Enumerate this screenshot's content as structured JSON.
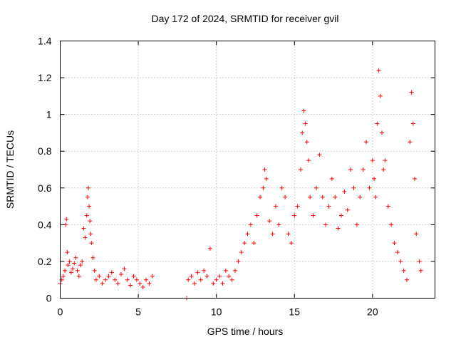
{
  "chart_data": {
    "type": "scatter",
    "title": "Day 172 of 2024, SRMTID for receiver gvil",
    "xlabel": "GPS time / hours",
    "ylabel": "SRMTID / TECUs",
    "xlim": [
      0,
      24
    ],
    "ylim": [
      0,
      1.4
    ],
    "xticks": [
      0,
      5,
      10,
      15,
      20
    ],
    "xtick_labels": [
      "0",
      "5",
      "10",
      "15",
      "20"
    ],
    "yticks": [
      0,
      0.2,
      0.4,
      0.6,
      0.8,
      1.0,
      1.2,
      1.4
    ],
    "ytick_labels": [
      "0",
      "0.2",
      "0.4",
      "0.6",
      "0.8",
      "1",
      "1.2",
      "1.4"
    ],
    "grid": true,
    "marker": "+",
    "series_color": "#ff0000",
    "series": [
      {
        "name": "SRMTID",
        "points": [
          [
            0.0,
            0.08
          ],
          [
            0.1,
            0.1
          ],
          [
            0.2,
            0.12
          ],
          [
            0.3,
            0.15
          ],
          [
            0.35,
            0.4
          ],
          [
            0.4,
            0.43
          ],
          [
            0.45,
            0.25
          ],
          [
            0.5,
            0.18
          ],
          [
            0.6,
            0.2
          ],
          [
            0.7,
            0.14
          ],
          [
            0.8,
            0.16
          ],
          [
            0.9,
            0.19
          ],
          [
            1.0,
            0.22
          ],
          [
            1.1,
            0.15
          ],
          [
            1.2,
            0.12
          ],
          [
            1.3,
            0.18
          ],
          [
            1.4,
            0.2
          ],
          [
            1.5,
            0.38
          ],
          [
            1.6,
            0.33
          ],
          [
            1.7,
            0.45
          ],
          [
            1.75,
            0.55
          ],
          [
            1.8,
            0.6
          ],
          [
            1.85,
            0.5
          ],
          [
            1.9,
            0.42
          ],
          [
            1.95,
            0.35
          ],
          [
            2.0,
            0.3
          ],
          [
            2.1,
            0.22
          ],
          [
            2.2,
            0.15
          ],
          [
            2.3,
            0.1
          ],
          [
            2.5,
            0.12
          ],
          [
            2.7,
            0.08
          ],
          [
            2.9,
            0.1
          ],
          [
            3.1,
            0.12
          ],
          [
            3.3,
            0.14
          ],
          [
            3.5,
            0.1
          ],
          [
            3.7,
            0.08
          ],
          [
            3.9,
            0.13
          ],
          [
            4.1,
            0.16
          ],
          [
            4.3,
            0.1
          ],
          [
            4.5,
            0.07
          ],
          [
            4.7,
            0.12
          ],
          [
            4.9,
            0.1
          ],
          [
            5.1,
            0.08
          ],
          [
            5.3,
            0.06
          ],
          [
            5.5,
            0.1
          ],
          [
            5.7,
            0.08
          ],
          [
            5.9,
            0.12
          ],
          [
            8.1,
            0.0
          ],
          [
            8.2,
            0.1
          ],
          [
            8.4,
            0.12
          ],
          [
            8.6,
            0.08
          ],
          [
            8.8,
            0.14
          ],
          [
            9.0,
            0.1
          ],
          [
            9.2,
            0.15
          ],
          [
            9.4,
            0.12
          ],
          [
            9.6,
            0.27
          ],
          [
            9.8,
            0.08
          ],
          [
            10.0,
            0.1
          ],
          [
            10.2,
            0.12
          ],
          [
            10.4,
            0.08
          ],
          [
            10.6,
            0.15
          ],
          [
            10.8,
            0.12
          ],
          [
            11.0,
            0.1
          ],
          [
            11.2,
            0.15
          ],
          [
            11.4,
            0.2
          ],
          [
            11.6,
            0.25
          ],
          [
            11.8,
            0.3
          ],
          [
            12.0,
            0.35
          ],
          [
            12.2,
            0.4
          ],
          [
            12.4,
            0.3
          ],
          [
            12.6,
            0.45
          ],
          [
            12.8,
            0.55
          ],
          [
            13.0,
            0.6
          ],
          [
            13.1,
            0.7
          ],
          [
            13.2,
            0.65
          ],
          [
            13.4,
            0.42
          ],
          [
            13.6,
            0.35
          ],
          [
            13.8,
            0.5
          ],
          [
            14.0,
            0.4
          ],
          [
            14.2,
            0.6
          ],
          [
            14.4,
            0.55
          ],
          [
            14.6,
            0.35
          ],
          [
            14.8,
            0.3
          ],
          [
            15.0,
            0.45
          ],
          [
            15.2,
            0.5
          ],
          [
            15.4,
            0.7
          ],
          [
            15.5,
            0.9
          ],
          [
            15.6,
            1.02
          ],
          [
            15.7,
            0.95
          ],
          [
            15.8,
            0.85
          ],
          [
            15.9,
            0.75
          ],
          [
            16.0,
            0.55
          ],
          [
            16.2,
            0.45
          ],
          [
            16.4,
            0.6
          ],
          [
            16.6,
            0.78
          ],
          [
            16.8,
            0.55
          ],
          [
            17.0,
            0.4
          ],
          [
            17.2,
            0.5
          ],
          [
            17.4,
            0.65
          ],
          [
            17.6,
            0.55
          ],
          [
            17.8,
            0.38
          ],
          [
            18.0,
            0.45
          ],
          [
            18.2,
            0.58
          ],
          [
            18.4,
            0.48
          ],
          [
            18.6,
            0.7
          ],
          [
            18.8,
            0.6
          ],
          [
            19.0,
            0.4
          ],
          [
            19.2,
            0.55
          ],
          [
            19.4,
            0.7
          ],
          [
            19.6,
            0.85
          ],
          [
            19.8,
            0.6
          ],
          [
            20.0,
            0.75
          ],
          [
            20.1,
            0.65
          ],
          [
            20.2,
            0.55
          ],
          [
            20.3,
            0.95
          ],
          [
            20.4,
            1.24
          ],
          [
            20.5,
            1.1
          ],
          [
            20.6,
            0.9
          ],
          [
            20.7,
            0.7
          ],
          [
            20.8,
            0.75
          ],
          [
            21.0,
            0.5
          ],
          [
            21.2,
            0.4
          ],
          [
            21.4,
            0.3
          ],
          [
            21.6,
            0.25
          ],
          [
            21.8,
            0.2
          ],
          [
            22.0,
            0.15
          ],
          [
            22.2,
            0.1
          ],
          [
            22.4,
            0.85
          ],
          [
            22.5,
            1.12
          ],
          [
            22.6,
            0.95
          ],
          [
            22.7,
            0.65
          ],
          [
            22.8,
            0.35
          ],
          [
            23.0,
            0.2
          ],
          [
            23.1,
            0.15
          ]
        ]
      }
    ]
  }
}
